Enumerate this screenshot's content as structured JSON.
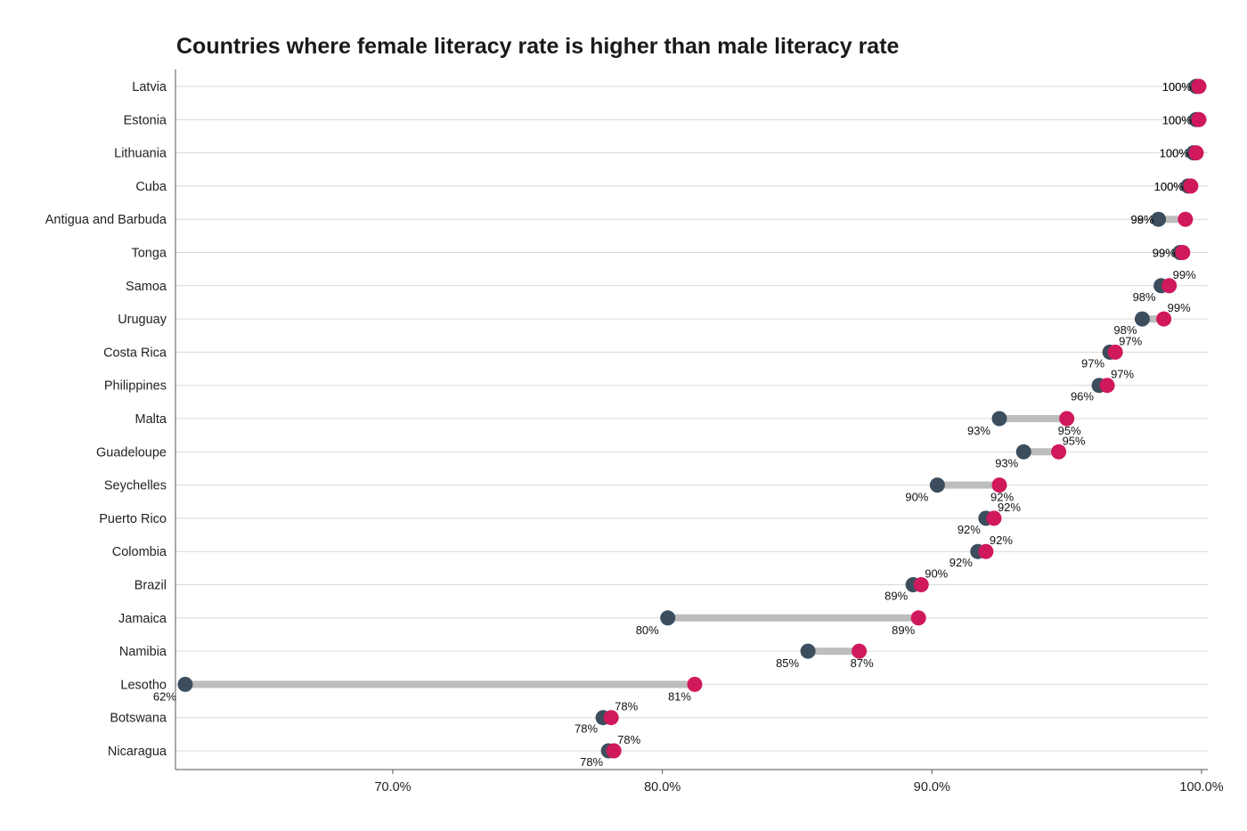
{
  "chart_data": {
    "type": "dumbbell",
    "title": "Countries where female literacy rate is higher than male literacy rate",
    "xlabel": "",
    "ylabel": "",
    "xlim": [
      62,
      100
    ],
    "x_ticks": [
      70,
      80,
      90,
      100
    ],
    "x_tick_labels": [
      "70.0%",
      "80.0%",
      "90.0%",
      "100.0%"
    ],
    "grid": "horizontal",
    "colors": {
      "male": "#3c4e5e",
      "female": "#d0185c",
      "connector": "#bdbdbd",
      "grid": "#d9d9d9"
    },
    "categories": [
      "Latvia",
      "Estonia",
      "Lithuania",
      "Cuba",
      "Antigua and Barbuda",
      "Tonga",
      "Samoa",
      "Uruguay",
      "Costa Rica",
      "Philippines",
      "Malta",
      "Guadeloupe",
      "Seychelles",
      "Puerto Rico",
      "Colombia",
      "Brazil",
      "Jamaica",
      "Namibia",
      "Lesotho",
      "Botswana",
      "Nicaragua"
    ],
    "series": [
      {
        "key": "male",
        "values": [
          99.8,
          99.8,
          99.7,
          99.5,
          98.4,
          99.2,
          98.5,
          97.8,
          96.6,
          96.2,
          92.5,
          93.4,
          90.2,
          92.0,
          91.7,
          89.3,
          80.2,
          85.4,
          62.3,
          77.8,
          78.0
        ],
        "labels": [
          "100%",
          "100%",
          "100%",
          "100%",
          "98%",
          "99%",
          "98%",
          "98%",
          "97%",
          "96%",
          "93%",
          "93%",
          "90%",
          "92%",
          "92%",
          "89%",
          "80%",
          "85%",
          "62%",
          "78%",
          "78%"
        ]
      },
      {
        "key": "female",
        "values": [
          99.9,
          99.9,
          99.8,
          99.6,
          99.4,
          99.3,
          98.8,
          98.6,
          96.8,
          96.5,
          95.0,
          94.7,
          92.5,
          92.3,
          92.0,
          89.6,
          89.5,
          87.3,
          81.2,
          78.1,
          78.2
        ],
        "labels": [
          "100%",
          "100%",
          "100%",
          "100%",
          "99%",
          "99%",
          "99%",
          "99%",
          "97%",
          "97%",
          "95%",
          "95%",
          "92%",
          "92%",
          "92%",
          "90%",
          "89%",
          "87%",
          "81%",
          "78%",
          "78%"
        ]
      }
    ]
  }
}
